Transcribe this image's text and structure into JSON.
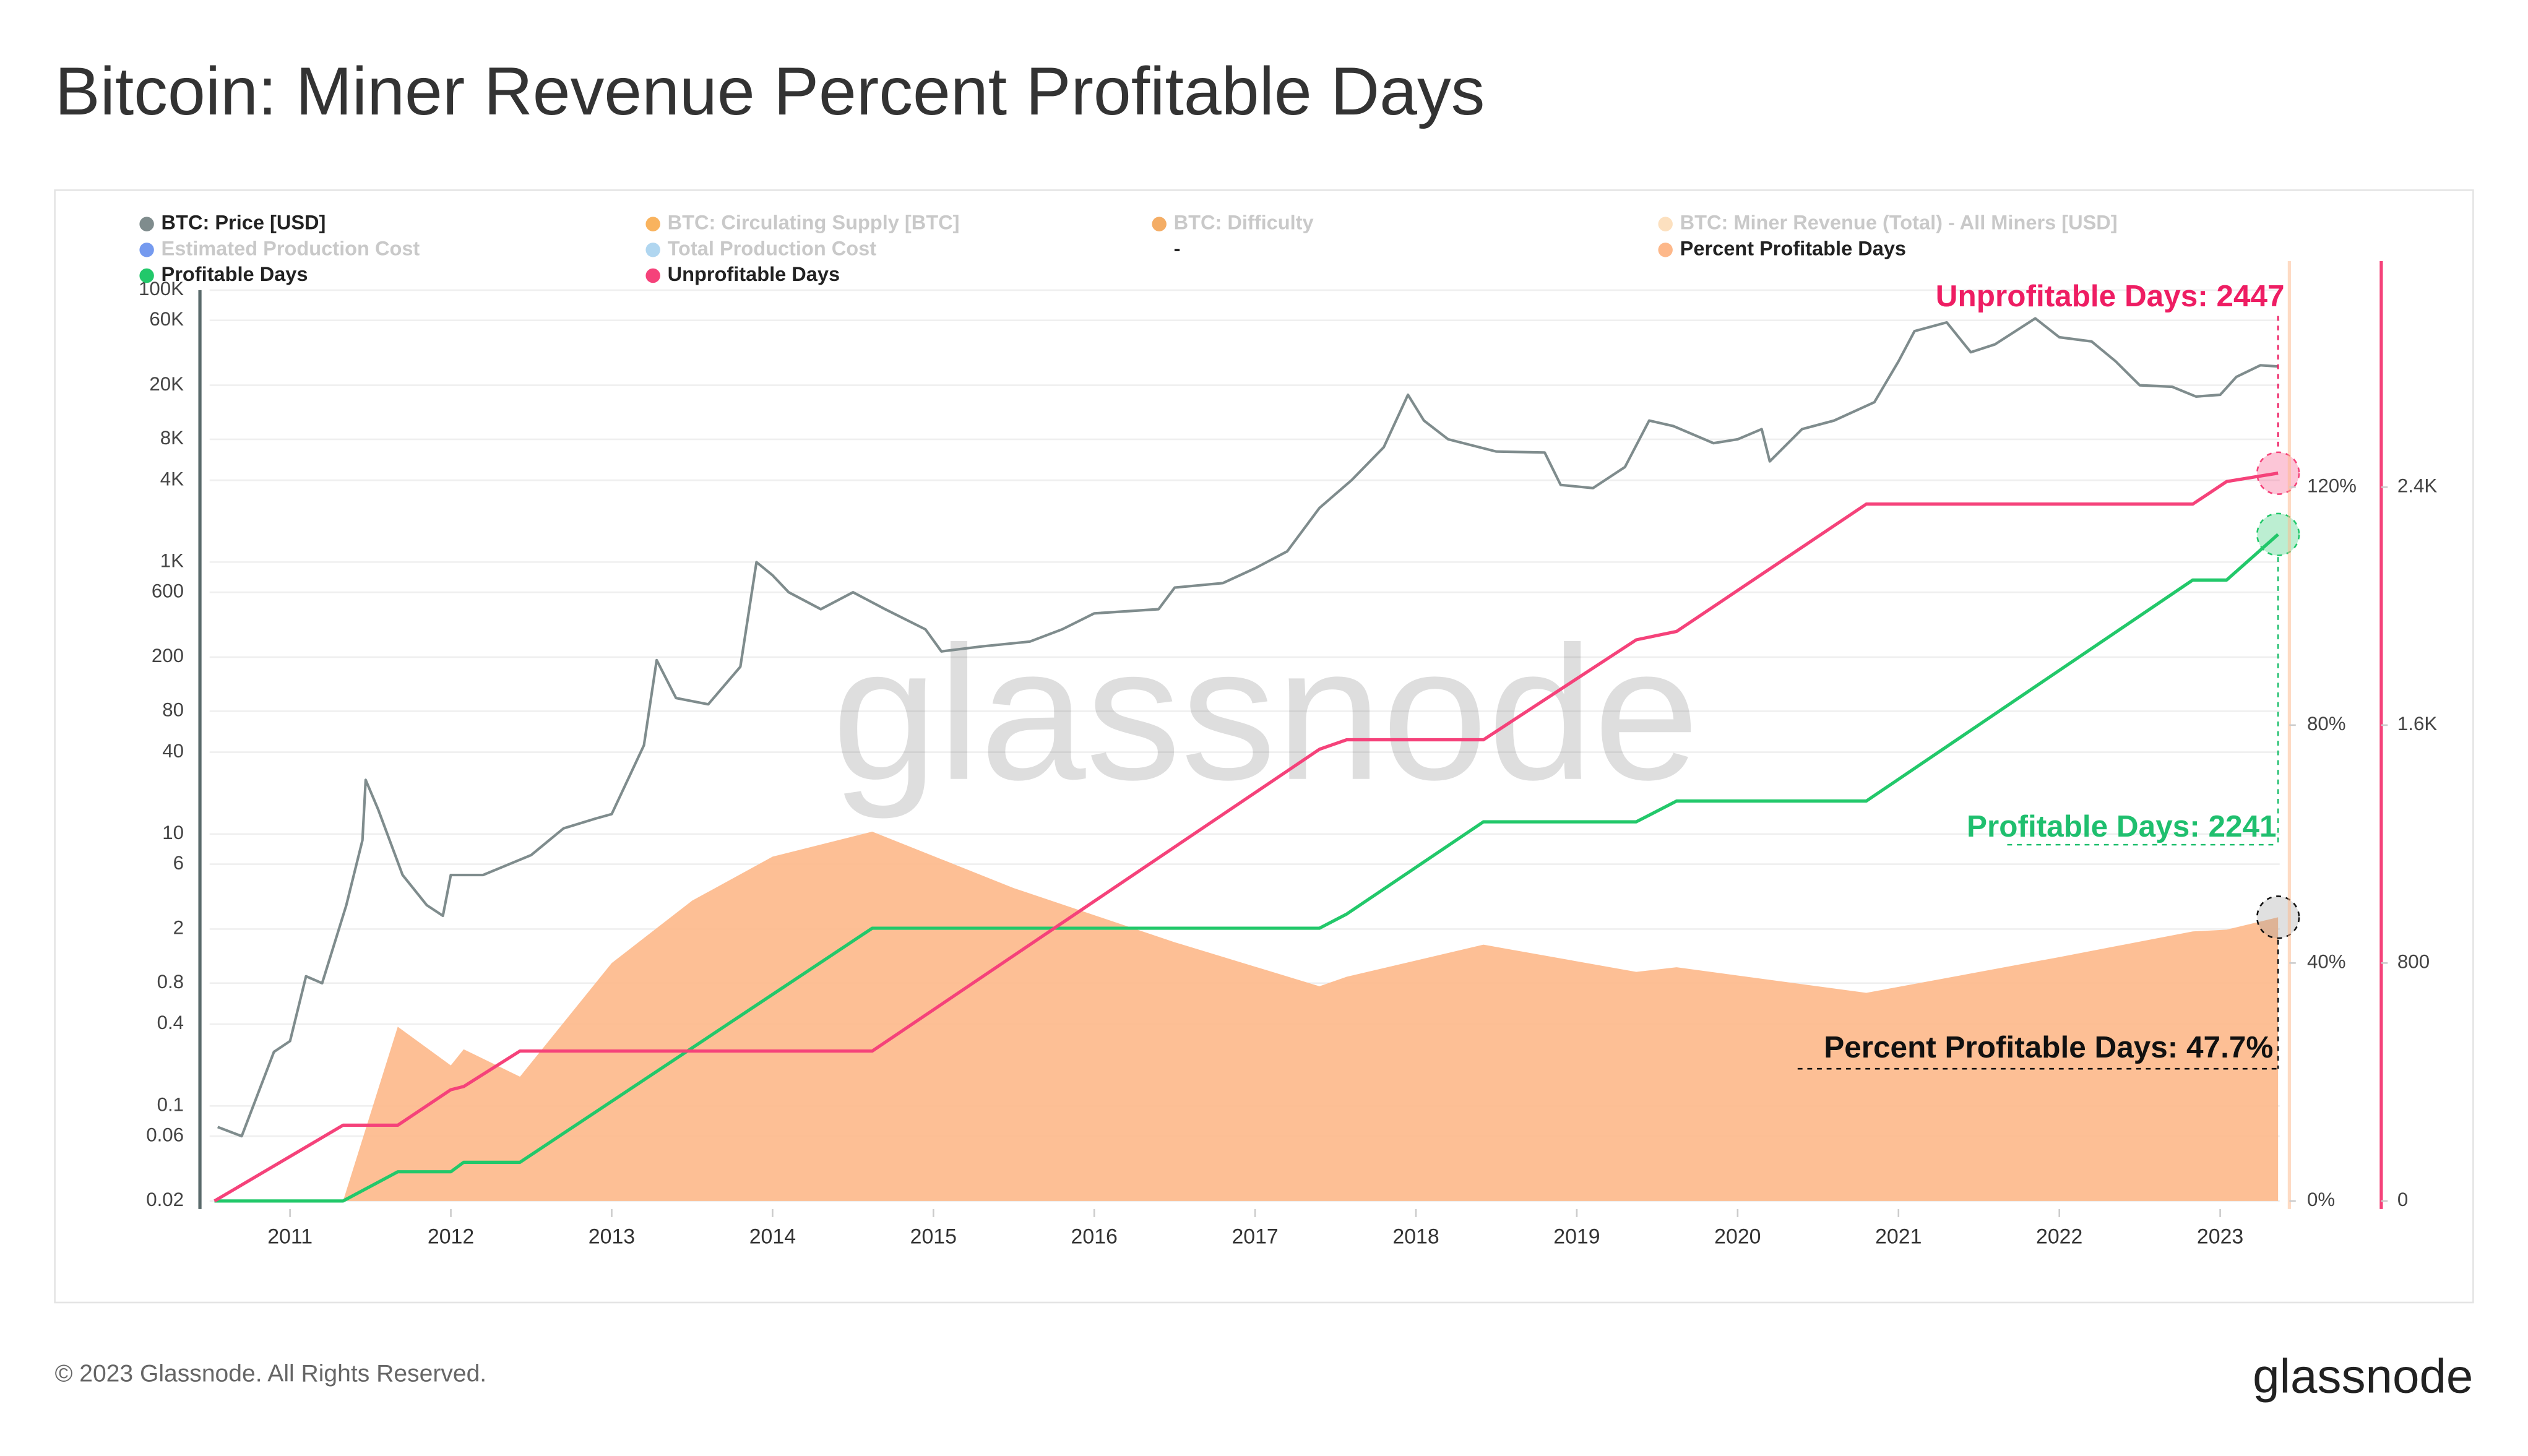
{
  "chart_data": {
    "type": "line",
    "title": "Bitcoin: Miner Revenue Percent Profitable Days",
    "watermark": "glassnode",
    "copyright": "© 2023 Glassnode. All Rights Reserved.",
    "logo": "glassnode",
    "xlim": [
      2010.45,
      2023.37
    ],
    "xticks": [
      2011,
      2012,
      2013,
      2014,
      2015,
      2016,
      2017,
      2018,
      2019,
      2020,
      2021,
      2022,
      2023
    ],
    "ylog": true,
    "ylim": [
      0.02,
      100000
    ],
    "yticks": [
      {
        "value": 100000,
        "label": "100K"
      },
      {
        "value": 60000,
        "label": "60K"
      },
      {
        "value": 20000,
        "label": "20K"
      },
      {
        "value": 8000,
        "label": "8K"
      },
      {
        "value": 4000,
        "label": "4K"
      },
      {
        "value": 1000,
        "label": "1K"
      },
      600,
      200,
      80,
      40,
      10,
      6,
      2,
      0.8,
      0.4,
      0.1,
      0.06,
      0.02
    ],
    "y2lim": [
      0,
      158
    ],
    "y2ticks": [
      {
        "value": 0,
        "label": "0%"
      },
      {
        "value": 40,
        "label": "40%"
      },
      {
        "value": 80,
        "label": "80%"
      },
      {
        "value": 120,
        "label": "120%"
      }
    ],
    "y3lim": [
      0,
      3160
    ],
    "y3ticks": [
      0,
      800,
      {
        "value": 1600,
        "label": "1.6K"
      },
      {
        "value": 2400,
        "label": "2.4K"
      }
    ],
    "grid": true,
    "series": [
      {
        "name": "BTC: Price [USD]",
        "color": "#7f8c8d",
        "axis": "y",
        "x": [
          2010.55,
          2010.7,
          2010.9,
          2011.0,
          2011.1,
          2011.2,
          2011.35,
          2011.45,
          2011.47,
          2011.55,
          2011.7,
          2011.85,
          2011.95,
          2012.0,
          2012.2,
          2012.5,
          2012.7,
          2012.9,
          2013.0,
          2013.2,
          2013.28,
          2013.4,
          2013.6,
          2013.8,
          2013.9,
          2014.0,
          2014.1,
          2014.3,
          2014.5,
          2014.7,
          2014.95,
          2015.05,
          2015.3,
          2015.6,
          2015.8,
          2016.0,
          2016.4,
          2016.5,
          2016.8,
          2017.0,
          2017.2,
          2017.4,
          2017.6,
          2017.8,
          2017.95,
          2018.05,
          2018.2,
          2018.5,
          2018.8,
          2018.9,
          2019.1,
          2019.3,
          2019.45,
          2019.6,
          2019.85,
          2020.0,
          2020.15,
          2020.2,
          2020.4,
          2020.6,
          2020.85,
          2021.0,
          2021.1,
          2021.3,
          2021.45,
          2021.6,
          2021.85,
          2022.0,
          2022.2,
          2022.35,
          2022.5,
          2022.7,
          2022.85,
          2023.0,
          2023.1,
          2023.25,
          2023.36
        ],
        "values": [
          0.07,
          0.06,
          0.25,
          0.3,
          0.9,
          0.8,
          3,
          9,
          25,
          15,
          5,
          3,
          2.5,
          5,
          5,
          7,
          11,
          13,
          14,
          45,
          190,
          100,
          90,
          170,
          1000,
          800,
          600,
          450,
          600,
          450,
          320,
          220,
          240,
          260,
          320,
          420,
          450,
          650,
          700,
          900,
          1200,
          2500,
          4000,
          7000,
          17000,
          11000,
          8000,
          6500,
          6400,
          3700,
          3500,
          5000,
          11000,
          10000,
          7500,
          8000,
          9500,
          5500,
          9500,
          11000,
          15000,
          30000,
          50000,
          58000,
          35000,
          40000,
          62000,
          45000,
          42000,
          30000,
          20000,
          19500,
          16500,
          17000,
          23000,
          28000,
          27500
        ]
      },
      {
        "name": "Percent Profitable Days",
        "color": "#fdb88a",
        "axis": "y2",
        "x": [
          2011.33,
          2011.67,
          2012.0,
          2012.08,
          2012.43,
          2013.0,
          2013.5,
          2014.0,
          2014.62,
          2015.5,
          2016.5,
          2017.4,
          2017.57,
          2018.42,
          2019.37,
          2019.62,
          2020.8,
          2022.0,
          2022.83,
          2023.04,
          2023.36
        ],
        "values": [
          0,
          29.3,
          22.8,
          25.5,
          20.9,
          40,
          50.5,
          57.9,
          62.1,
          52.6,
          43.5,
          36.1,
          37.7,
          43.1,
          38.5,
          39.3,
          35,
          41,
          45.3,
          45.6,
          47.7
        ]
      },
      {
        "name": "Profitable Days",
        "color": "#22c86a",
        "axis": "y3",
        "x": [
          2010.53,
          2011.33,
          2011.67,
          2012.0,
          2012.08,
          2012.43,
          2014.62,
          2017.4,
          2017.57,
          2018.42,
          2019.37,
          2019.62,
          2020.8,
          2022.83,
          2023.04,
          2023.36
        ],
        "values": [
          0,
          0,
          98,
          98,
          130,
          130,
          917,
          917,
          965,
          1275,
          1275,
          1345,
          1345,
          2088,
          2088,
          2241
        ]
      },
      {
        "name": "Unprofitable Days",
        "color": "#f5427a",
        "axis": "y3",
        "x": [
          2010.53,
          2011.33,
          2011.67,
          2012.0,
          2012.08,
          2012.43,
          2014.62,
          2017.4,
          2017.57,
          2018.42,
          2019.37,
          2019.62,
          2020.8,
          2022.83,
          2023.04,
          2023.36
        ],
        "values": [
          0,
          255,
          255,
          374,
          385,
          504,
          504,
          1519,
          1551,
          1551,
          1887,
          1915,
          2343,
          2343,
          2419,
          2447
        ]
      }
    ],
    "inactive_legend": [
      {
        "name": "BTC: Circulating Supply [BTC]",
        "color": "#f7931a",
        "faded": true
      },
      {
        "name": "BTC: Difficulty",
        "color": "#f08a24",
        "faded": true
      },
      {
        "name": "BTC: Miner Revenue (Total) - All Miners [USD]",
        "color": "#fbd3a4",
        "faded": true
      },
      {
        "name": "Estimated Production Cost",
        "color": "#3b6fe8",
        "faded": true
      },
      {
        "name": "Total Production Cost",
        "color": "#8ec5ea",
        "faded": true
      },
      {
        "name": "-",
        "faded": false
      }
    ],
    "annotations": [
      {
        "text": "Unprofitable Days: 2447",
        "color": "#ee1d63"
      },
      {
        "text": "Profitable Days: 2241",
        "color": "#1fbf6e"
      },
      {
        "text": "Percent Profitable Days: 47.7%",
        "color": "#111111"
      }
    ]
  }
}
